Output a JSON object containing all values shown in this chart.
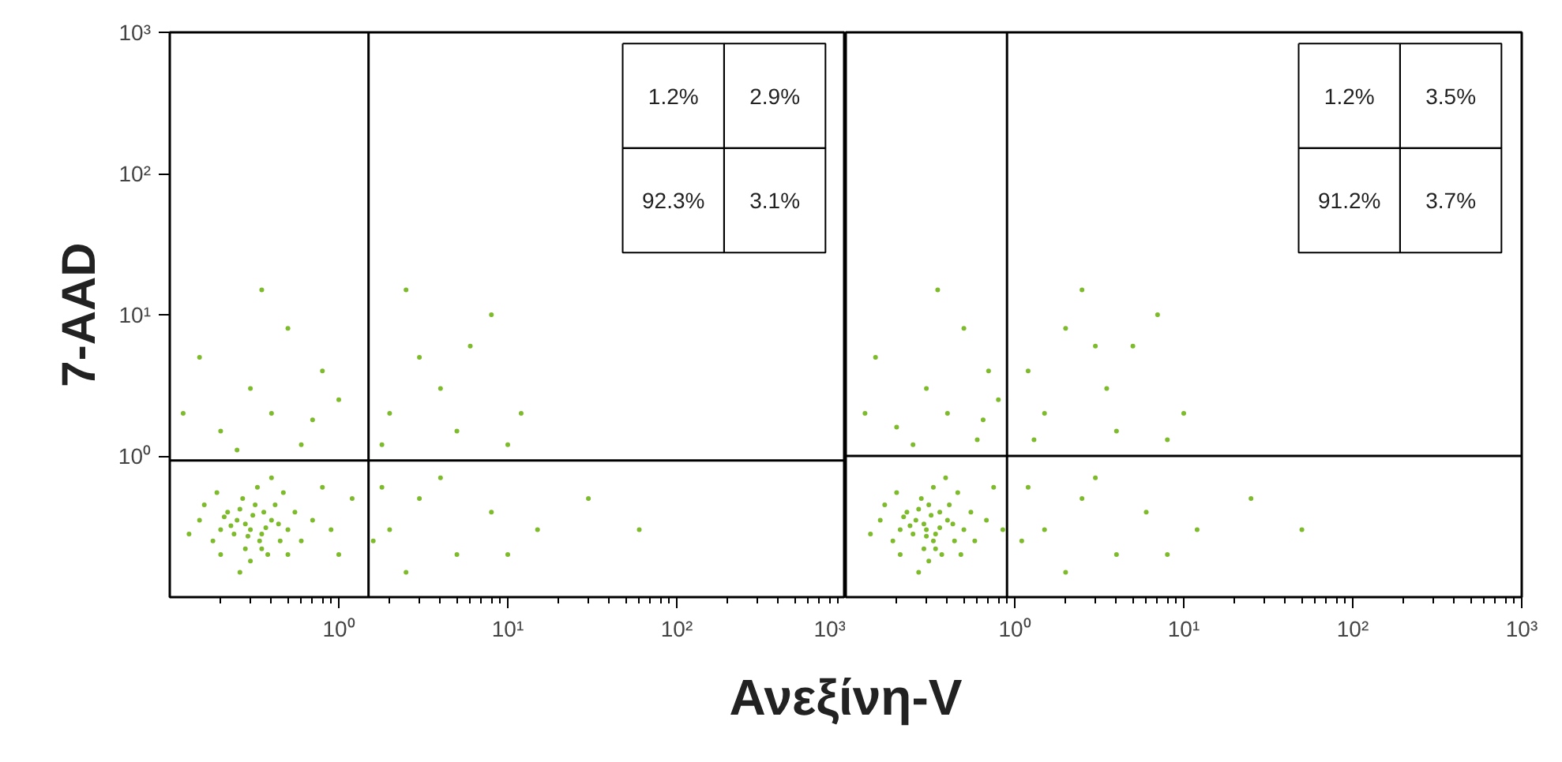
{
  "chart_data": [
    {
      "type": "scatter",
      "ylabel": "7-AAD",
      "xlabel": "Ανεξίνη-V",
      "log": "xy",
      "grid": false,
      "marker": "circle",
      "tick_labels": true,
      "xlim": [
        0.1,
        1000
      ],
      "ylim": [
        0.1,
        1000
      ],
      "xticks": [
        {
          "value": 1,
          "label": "10⁰"
        },
        {
          "value": 10,
          "label": "10¹"
        },
        {
          "value": 100,
          "label": "10²"
        },
        {
          "value": 1000,
          "label": "10³"
        }
      ],
      "yticks": [
        {
          "value": 1,
          "label": "10⁰"
        },
        {
          "value": 10,
          "label": "10¹"
        },
        {
          "value": 100,
          "label": "10²"
        },
        {
          "value": 1000,
          "label": "10³"
        }
      ],
      "ref_lines": [
        {
          "axis": "x",
          "value": 1.5,
          "color": "#000000"
        },
        {
          "axis": "y",
          "value": 0.93,
          "color": "#000000"
        }
      ],
      "annotations": [
        "1.2%",
        "2.9%",
        "92.3%",
        "3.1%"
      ],
      "series": [
        {
          "color": "#7dbb2a",
          "x": [
            0.3,
            0.25,
            0.35,
            0.2,
            0.4,
            0.28,
            0.32,
            0.22,
            0.45,
            0.18,
            0.27,
            0.38,
            0.5,
            0.15,
            0.3,
            0.24,
            0.36,
            0.42,
            0.2,
            0.55,
            0.16,
            0.33,
            0.6,
            0.26,
            0.47,
            0.19,
            0.7,
            0.13,
            0.4,
            0.28,
            0.34,
            0.23,
            0.31,
            0.37,
            0.29,
            0.21,
            0.44,
            0.26,
            0.35,
            0.5,
            0.2,
            0.4,
            0.3,
            0.6,
            0.15,
            0.8,
            0.5,
            0.25,
            1.0,
            0.35,
            0.12,
            0.7,
            2,
            3,
            5,
            1.8,
            8,
            15,
            2.5,
            4,
            1.6,
            30,
            60,
            10,
            2,
            3,
            5,
            8,
            2.5,
            1.8,
            4,
            12,
            6,
            10,
            0.9,
            1.2,
            1.0,
            0.8
          ],
          "values": [
            0.3,
            0.35,
            0.28,
            0.3,
            0.35,
            0.22,
            0.45,
            0.4,
            0.25,
            0.25,
            0.5,
            0.2,
            0.3,
            0.35,
            0.18,
            0.28,
            0.4,
            0.45,
            0.2,
            0.4,
            0.45,
            0.6,
            0.25,
            0.15,
            0.55,
            0.55,
            0.35,
            0.28,
            0.7,
            0.33,
            0.25,
            0.32,
            0.38,
            0.31,
            0.27,
            0.37,
            0.33,
            0.42,
            0.22,
            0.2,
            1.5,
            2,
            3,
            1.2,
            5,
            4,
            8,
            1.1,
            2.5,
            15,
            2,
            1.8,
            0.3,
            0.5,
            0.2,
            0.6,
            0.4,
            0.3,
            0.15,
            0.7,
            0.25,
            0.5,
            0.3,
            0.2,
            2,
            5,
            1.5,
            10,
            15,
            1.2,
            3,
            2,
            6,
            1.2,
            0.3,
            0.5,
            0.2,
            0.6
          ]
        }
      ]
    },
    {
      "type": "scatter",
      "log": "xy",
      "grid": false,
      "marker": "circle",
      "tick_labels": "x",
      "xlim": [
        0.1,
        1000
      ],
      "ylim": [
        0.1,
        1000
      ],
      "xticks": [
        {
          "value": 1,
          "label": "10⁰"
        },
        {
          "value": 10,
          "label": "10¹"
        },
        {
          "value": 100,
          "label": "10²"
        },
        {
          "value": 1000,
          "label": "10³"
        }
      ],
      "ref_lines": [
        {
          "axis": "x",
          "value": 0.9,
          "color": "#000000"
        },
        {
          "axis": "y",
          "value": 1.0,
          "color": "#000000"
        }
      ],
      "annotations": [
        "1.2%",
        "3.5%",
        "91.2%",
        "3.7%"
      ],
      "series": [
        {
          "color": "#7dbb2a",
          "x": [
            0.3,
            0.26,
            0.34,
            0.21,
            0.4,
            0.29,
            0.31,
            0.23,
            0.44,
            0.19,
            0.28,
            0.37,
            0.5,
            0.16,
            0.31,
            0.25,
            0.36,
            0.41,
            0.21,
            0.55,
            0.17,
            0.33,
            0.58,
            0.27,
            0.46,
            0.2,
            0.68,
            0.14,
            0.39,
            0.29,
            0.33,
            0.24,
            0.32,
            0.36,
            0.3,
            0.22,
            0.43,
            0.27,
            0.34,
            0.48,
            0.2,
            0.4,
            0.3,
            0.6,
            0.15,
            0.7,
            0.5,
            0.25,
            0.8,
            0.35,
            0.13,
            0.65,
            1.5,
            2.5,
            4,
            1.2,
            6,
            12,
            2,
            3,
            1.1,
            25,
            50,
            8,
            1.5,
            3,
            4,
            7,
            2.5,
            1.3,
            3.5,
            10,
            5,
            8,
            2,
            1.2,
            0.85,
            0.75
          ],
          "values": [
            0.3,
            0.35,
            0.28,
            0.3,
            0.35,
            0.22,
            0.45,
            0.4,
            0.25,
            0.25,
            0.5,
            0.2,
            0.3,
            0.35,
            0.18,
            0.28,
            0.4,
            0.45,
            0.2,
            0.4,
            0.45,
            0.6,
            0.25,
            0.15,
            0.55,
            0.55,
            0.35,
            0.28,
            0.7,
            0.33,
            0.25,
            0.32,
            0.38,
            0.31,
            0.27,
            0.37,
            0.33,
            0.42,
            0.22,
            0.2,
            1.6,
            2,
            3,
            1.3,
            5,
            4,
            8,
            1.2,
            2.5,
            15,
            2,
            1.8,
            0.3,
            0.5,
            0.2,
            0.6,
            0.4,
            0.3,
            0.15,
            0.7,
            0.25,
            0.5,
            0.3,
            0.2,
            2,
            6,
            1.5,
            10,
            15,
            1.3,
            3,
            2,
            6,
            1.3,
            8,
            4,
            0.3,
            0.6
          ]
        }
      ]
    }
  ]
}
